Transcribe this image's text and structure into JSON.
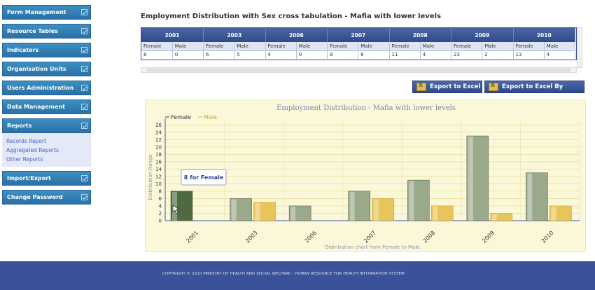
{
  "sidebar": {
    "items": [
      {
        "label": "Form Management"
      },
      {
        "label": "Resource Tables"
      },
      {
        "label": "Indicators"
      },
      {
        "label": "Organisation Units"
      },
      {
        "label": "Users Administration"
      },
      {
        "label": "Data Management"
      },
      {
        "label": "Reports"
      },
      {
        "label": "Import/Export"
      },
      {
        "label": "Change Password"
      }
    ],
    "reports_submenu": [
      "Records Report",
      "Aggregated Reports",
      "Other Reports"
    ]
  },
  "page": {
    "title": "Employment Distribution with Sex cross tabulation - Mafia with lower levels"
  },
  "table": {
    "years": [
      "2001",
      "2003",
      "2006",
      "2007",
      "2008",
      "2009",
      "2010"
    ],
    "sexes": [
      "Female",
      "Male"
    ],
    "values": [
      "8",
      "0",
      "6",
      "5",
      "4",
      "0",
      "8",
      "6",
      "11",
      "4",
      "23",
      "2",
      "13",
      "4"
    ]
  },
  "buttons": {
    "export_excel": "Export to Excel",
    "export_excel_carde": "Export to Excel By Carde"
  },
  "chart_data": {
    "type": "bar",
    "title": "Employment Distribution - Mafia with lower levels",
    "xlabel": "Distribution chart from Female to Male.",
    "ylabel": "Distribution Range",
    "categories": [
      "2001",
      "2003",
      "2006",
      "2007",
      "2008",
      "2009",
      "2010"
    ],
    "series": [
      {
        "name": "Female",
        "values": [
          8,
          6,
          4,
          8,
          11,
          23,
          13
        ],
        "color": "#9aa98a"
      },
      {
        "name": "Male",
        "values": [
          0,
          5,
          0,
          6,
          4,
          2,
          4
        ],
        "color": "#e7c55a"
      }
    ],
    "ylim": [
      0,
      27
    ],
    "yticks": [
      0,
      2,
      4,
      6,
      8,
      10,
      12,
      14,
      16,
      18,
      20,
      22,
      24,
      26
    ],
    "legend_position": "top-left",
    "tooltip": "8 for Female",
    "grid": true,
    "highlight_color": "#4f6a40"
  },
  "footer": {
    "text": "COPYRIGHT © 2010 MINISTRY OF HEALTH AND SOCIAL WELFARE - HUMAN RESOURCE FOR HEALTH INFORMATION SYSTEM"
  }
}
